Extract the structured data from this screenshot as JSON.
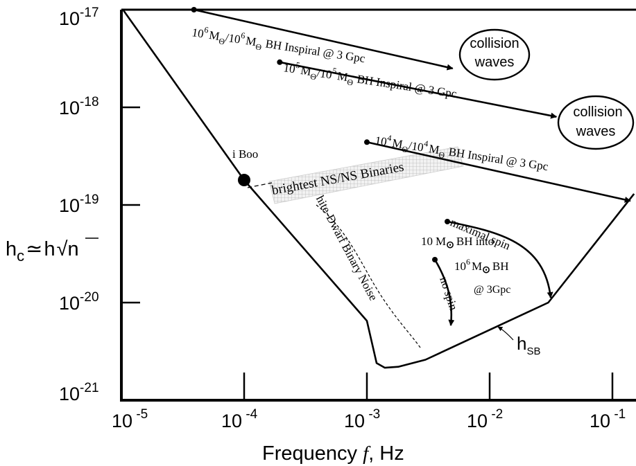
{
  "chart_data": {
    "type": "line",
    "xlabel": {
      "text": "Frequency",
      "symbol": "f",
      "unit": "Hz"
    },
    "ylabel": {
      "base": "h",
      "sub": "c",
      "approx": "≃",
      "rhs": "h",
      "radicand": "n"
    },
    "x_scale": "log",
    "y_scale": "log",
    "xlim": [
      1e-05,
      0.15
    ],
    "ylim": [
      1e-21,
      1e-17
    ],
    "grid": false,
    "x_ticks": [
      {
        "value": 1e-05,
        "base": "10",
        "exp": "-5"
      },
      {
        "value": 0.0001,
        "base": "10",
        "exp": "-4"
      },
      {
        "value": 0.001,
        "base": "10",
        "exp": "-3"
      },
      {
        "value": 0.01,
        "base": "10",
        "exp": "-2"
      },
      {
        "value": 0.1,
        "base": "10",
        "exp": "-1"
      }
    ],
    "y_ticks": [
      {
        "value": 1e-17,
        "base": "10",
        "exp": "-17"
      },
      {
        "value": 1e-18,
        "base": "10",
        "exp": "-18"
      },
      {
        "value": 1e-19,
        "base": "10",
        "exp": "-19"
      },
      {
        "value": 1e-20,
        "base": "10",
        "exp": "-20"
      },
      {
        "value": 1e-21,
        "base": "10",
        "exp": "-21"
      }
    ],
    "sensitivity_curve": {
      "label": "h",
      "label_sub": "SB",
      "points": [
        [
          1.03e-05,
          1e-17
        ],
        [
          0.0001,
          1.8e-19
        ],
        [
          0.001,
          6.5e-21
        ],
        [
          0.0012,
          2.4e-21
        ],
        [
          0.0014,
          2.15e-21
        ],
        [
          0.0018,
          2.2e-21
        ],
        [
          0.003,
          2.6e-21
        ],
        [
          0.03,
          1e-20
        ],
        [
          0.15,
          1.3e-19
        ]
      ]
    },
    "series": [
      {
        "name": "10^6 MΘ/10^6 MΘ BH Inspiral @ 3 Gpc",
        "label_parts": [
          "10",
          "6",
          "M",
          "Θ",
          "/10",
          "6",
          "M",
          "Θ",
          "BH  Inspiral @ 3 Gpc"
        ],
        "start": [
          3.9e-05,
          1e-17
        ],
        "end": [
          0.005,
          2.5e-18
        ]
      },
      {
        "name": "10^5 MΘ/10^5 MΘ BH Inspiral @ 3 Gpc",
        "label_parts": [
          "10",
          "5",
          "M",
          "Θ",
          "/10",
          "5",
          "M",
          "Θ",
          "BH  Inspiral @ 3 Gpc"
        ],
        "start": [
          0.000195,
          2.9e-18
        ],
        "end": [
          0.035,
          8e-19
        ]
      },
      {
        "name": "10^4 MΘ/10^4 MΘ BH Inspiral @ 3 Gpc",
        "label_parts": [
          "10",
          "4",
          "M",
          "Θ",
          "/10",
          "4",
          "M",
          "Θ",
          "BH  Inspiral @ 3 Gpc"
        ],
        "start": [
          0.001,
          4.4e-19
        ],
        "end": [
          0.14,
          1.1e-19
        ]
      }
    ],
    "collision_labels": [
      {
        "line1": "collision",
        "line2": "waves"
      },
      {
        "line1": "collision",
        "line2": "waves"
      }
    ],
    "point_source": {
      "label": "i Boo",
      "x": 0.0001,
      "y": 1.8e-19
    },
    "ns_binaries": {
      "label": "brightest NS/NS Binaries"
    },
    "white_dwarf": {
      "label": "White-Dwarf Binary Noise"
    },
    "emri": {
      "line1_num": "10",
      "line1_unit": "M",
      "line1_sym": "⊙",
      "line1_rest": "BH into",
      "line2_num": "10",
      "line2_exp": "6",
      "line2_unit": "M",
      "line2_sym": "⊙",
      "line2_rest": "BH",
      "line3": "@ 3Gpc",
      "maximal_label": "maximal spin",
      "nospin_label": "no spin",
      "maximal_start": [
        0.0045,
        6e-20
      ],
      "nospin_start": [
        0.0035,
        2.3e-20
      ]
    }
  }
}
